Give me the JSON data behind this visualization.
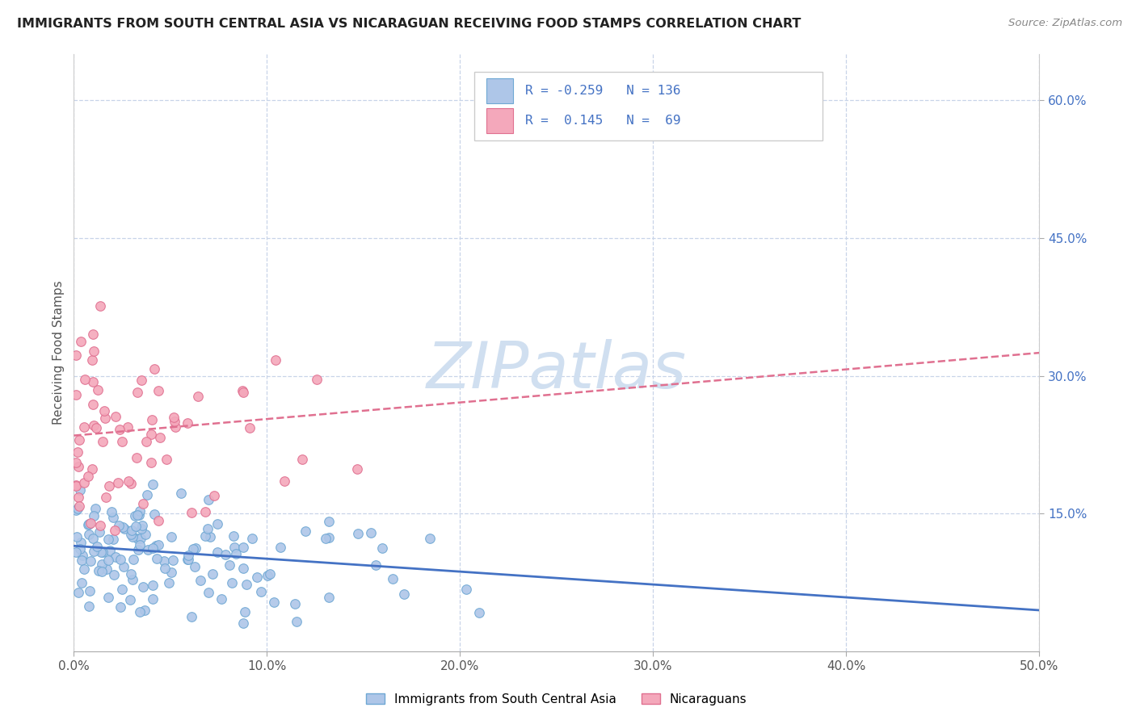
{
  "title": "IMMIGRANTS FROM SOUTH CENTRAL ASIA VS NICARAGUAN RECEIVING FOOD STAMPS CORRELATION CHART",
  "source": "Source: ZipAtlas.com",
  "ylabel": "Receiving Food Stamps",
  "series1_label": "Immigrants from South Central Asia",
  "series1_color": "#aec6e8",
  "series1_edge_color": "#6fa8d4",
  "series1_R": -0.259,
  "series1_N": 136,
  "series2_label": "Nicaraguans",
  "series2_color": "#f4a8bb",
  "series2_edge_color": "#e07090",
  "series2_R": 0.145,
  "series2_N": 69,
  "xlim": [
    0.0,
    0.5
  ],
  "ylim": [
    0.0,
    0.65
  ],
  "xtick_vals": [
    0.0,
    0.1,
    0.2,
    0.3,
    0.4,
    0.5
  ],
  "xtick_labels": [
    "0.0%",
    "10.0%",
    "20.0%",
    "30.0%",
    "40.0%",
    "50.0%"
  ],
  "ytick_vals": [
    0.15,
    0.3,
    0.45,
    0.6
  ],
  "ytick_labels": [
    "15.0%",
    "30.0%",
    "45.0%",
    "60.0%"
  ],
  "background_color": "#ffffff",
  "grid_color": "#c8d4e8",
  "legend_color": "#4472c4",
  "watermark_color": "#d0dff0",
  "trend1_color": "#4472c4",
  "trend2_color": "#e07090",
  "trend1_start_y": 0.115,
  "trend1_end_y": 0.045,
  "trend2_start_y": 0.235,
  "trend2_end_y": 0.325
}
